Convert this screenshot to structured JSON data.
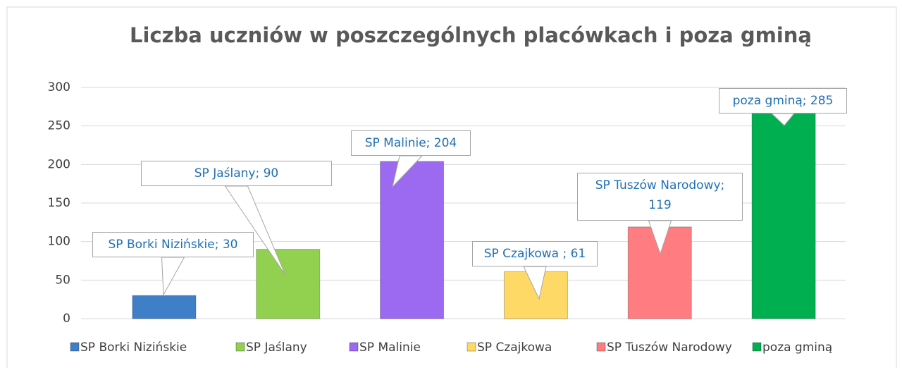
{
  "chart_data": {
    "type": "bar",
    "title": "Liczba uczniów w poszczególnych placówkach i poza gminą",
    "categories": [
      "SP Borki Nizińskie",
      "SP Jaślany",
      "SP Malinie",
      "SP Czajkowa",
      "SP Tuszów Narodowy",
      "poza gminą"
    ],
    "values": [
      30,
      90,
      204,
      61,
      119,
      285
    ],
    "value_labels": [
      "SP Borki Nizińskie; 30",
      "SP Jaślany; 90",
      "SP Malinie; 204",
      "SP Czajkowa ; 61",
      "SP Tuszów Narodowy; 119",
      "poza gminą; 285"
    ],
    "colors": [
      "#3f7fc8",
      "#92d050",
      "#9b6af0",
      "#ffd966",
      "#ff7c80",
      "#00b050"
    ],
    "ylim": [
      0,
      300
    ],
    "yticks": [
      0,
      50,
      100,
      150,
      200,
      250,
      300
    ],
    "grid": true,
    "legend": "bottom"
  }
}
